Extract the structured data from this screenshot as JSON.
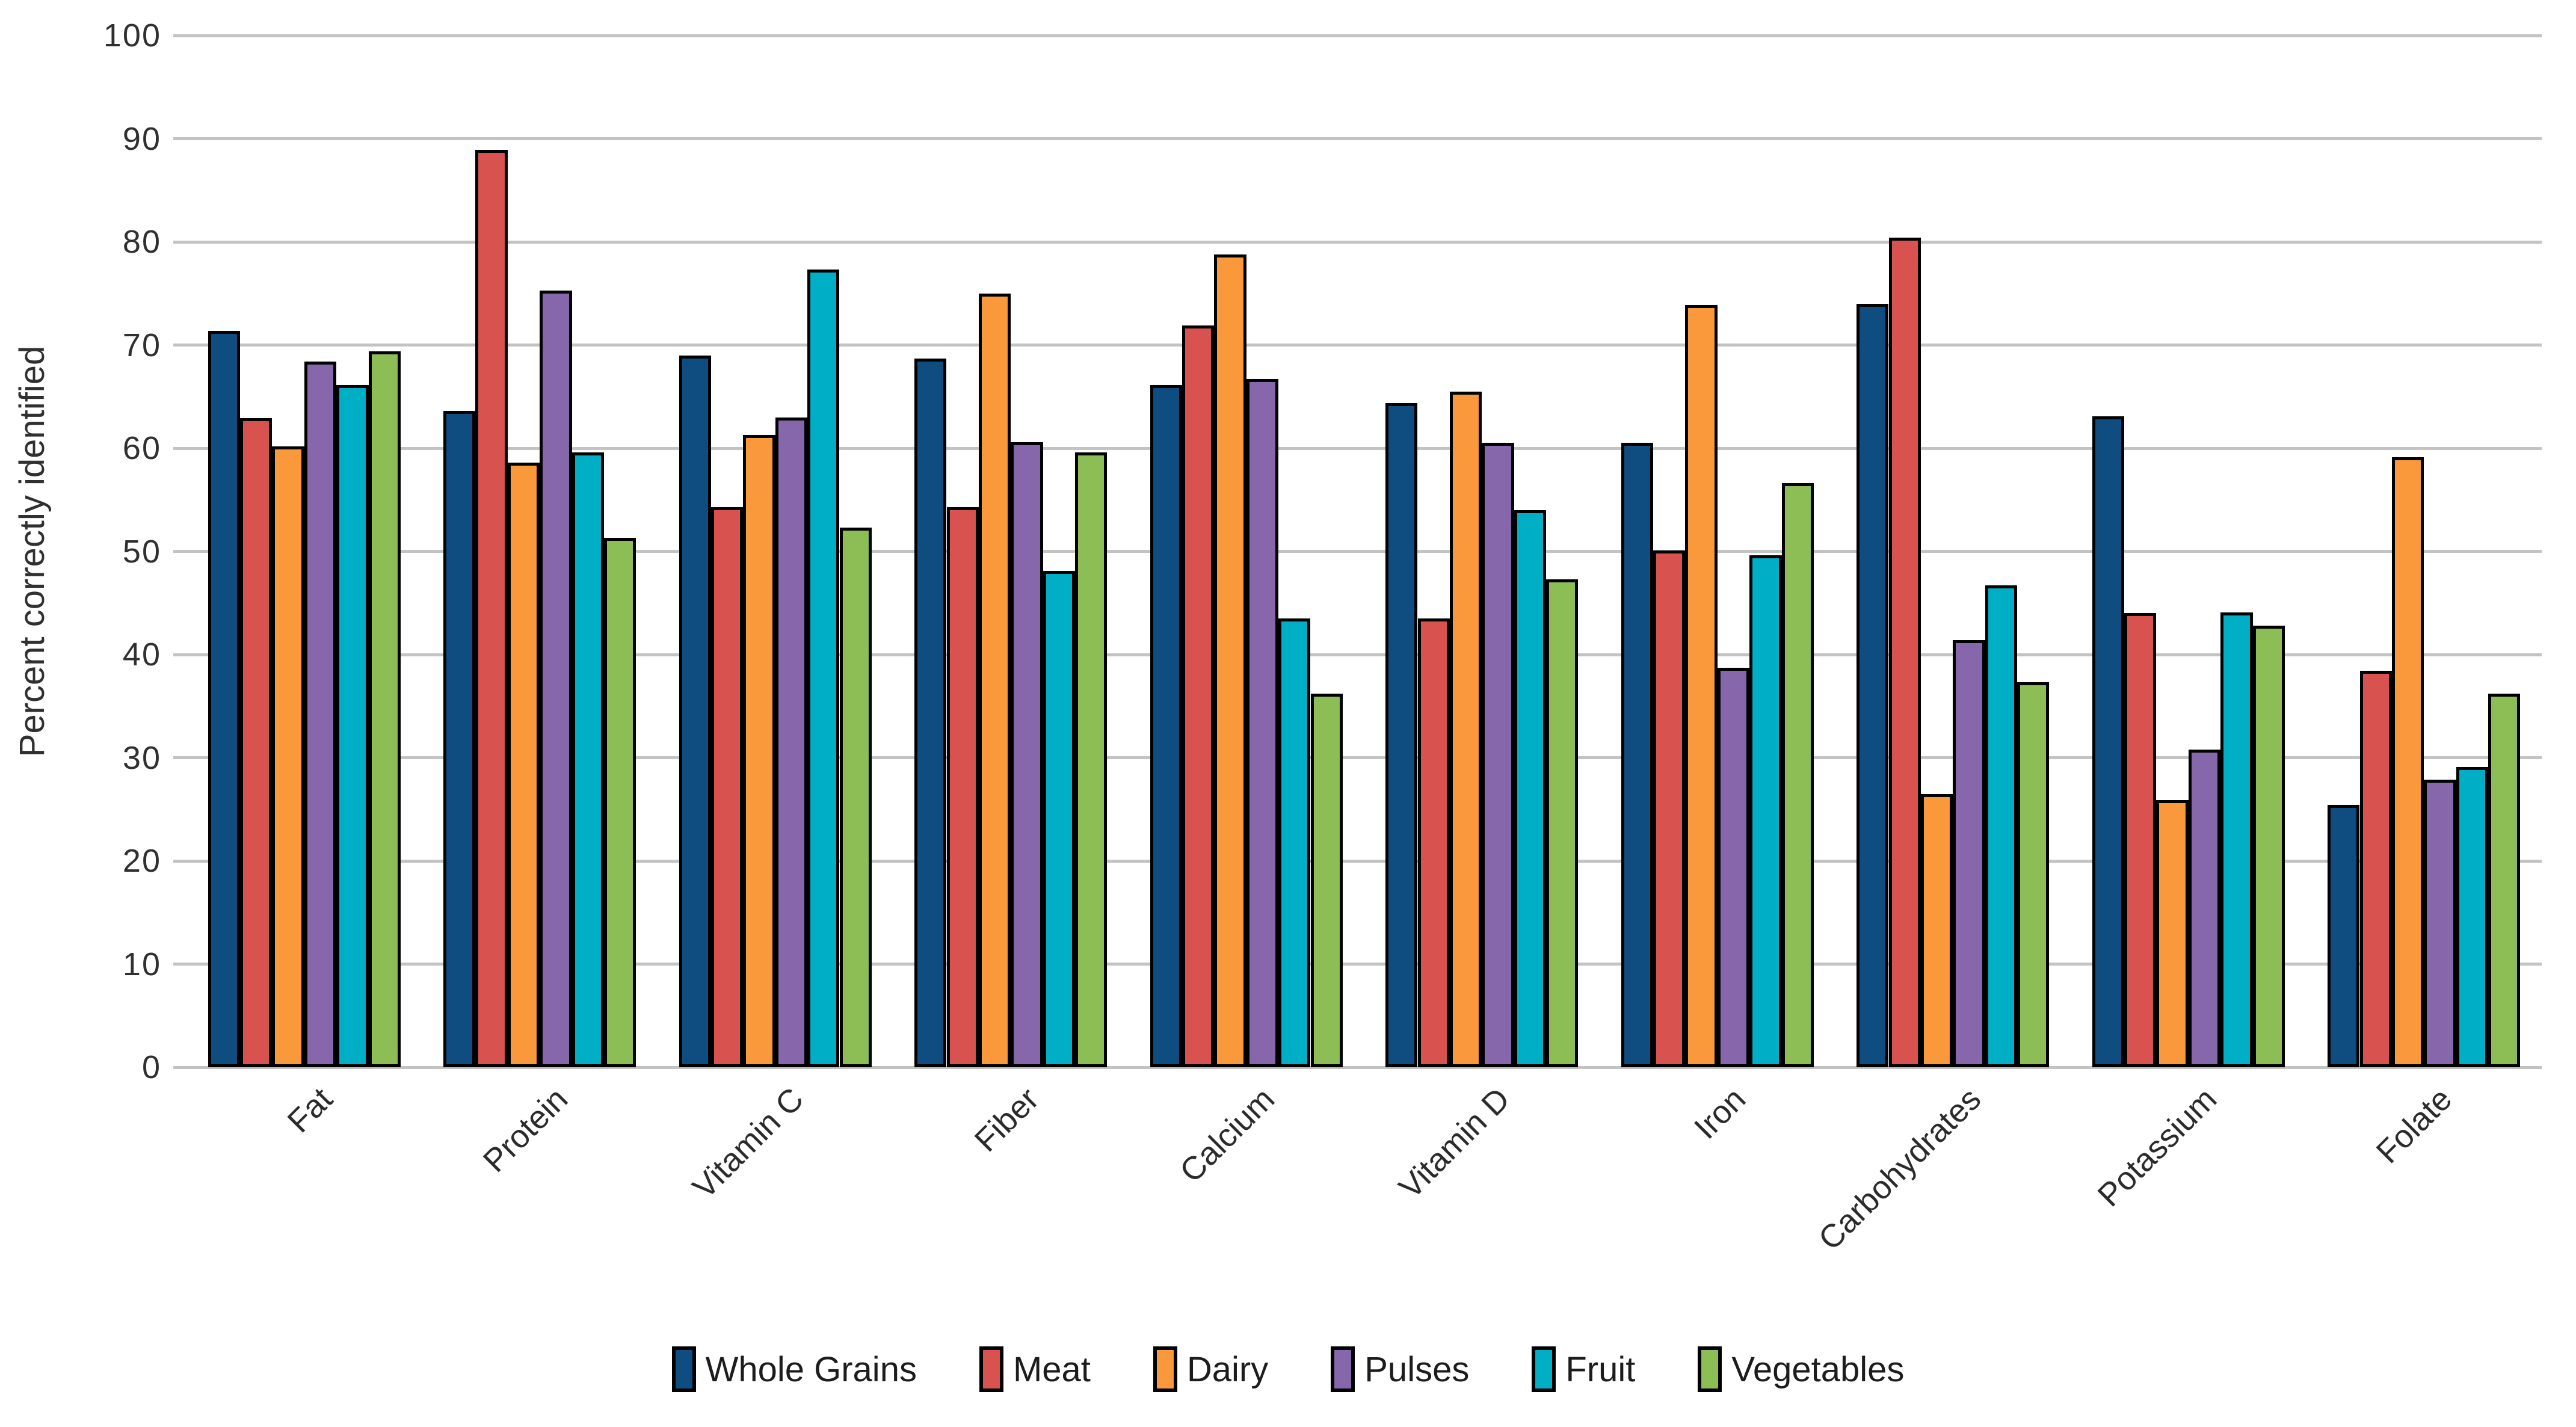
{
  "chart_data": {
    "type": "bar",
    "title": "",
    "xlabel": "",
    "ylabel": "Percent correctly identified",
    "ylim": [
      0,
      100
    ],
    "ytick_interval": 10,
    "ytick_labels": [
      "0",
      "10",
      "20",
      "30",
      "40",
      "50",
      "60",
      "70",
      "80",
      "90",
      "100"
    ],
    "grid": true,
    "legend_position": "bottom",
    "categories": [
      "Fat",
      "Protein",
      "Vitamin C",
      "Fiber",
      "Calcium",
      "Vitamin D",
      "Iron",
      "Carbohydrates",
      "Potassium",
      "Folate"
    ],
    "series": [
      {
        "name": "Whole Grains",
        "color": "#0f4c7f",
        "values": [
          71.4,
          63.6,
          69.0,
          68.7,
          66.1,
          64.4,
          60.5,
          74.0,
          63.1,
          25.4
        ]
      },
      {
        "name": "Meat",
        "color": "#d85250",
        "values": [
          62.9,
          88.9,
          54.3,
          54.3,
          71.9,
          43.5,
          50.1,
          80.4,
          44.0,
          38.4
        ]
      },
      {
        "name": "Dairy",
        "color": "#f9993b",
        "values": [
          60.2,
          58.6,
          61.3,
          75.0,
          78.8,
          65.5,
          73.9,
          26.5,
          25.9,
          59.1
        ]
      },
      {
        "name": "Pulses",
        "color": "#8767ac",
        "values": [
          68.4,
          75.3,
          63.0,
          60.6,
          66.7,
          60.5,
          38.7,
          41.4,
          30.8,
          27.9
        ]
      },
      {
        "name": "Fruit",
        "color": "#00aec6",
        "values": [
          66.1,
          59.6,
          77.3,
          48.1,
          43.5,
          54.0,
          49.6,
          46.7,
          44.1,
          29.1
        ]
      },
      {
        "name": "Vegetables",
        "color": "#8cbe55",
        "values": [
          69.4,
          51.3,
          52.3,
          59.6,
          36.2,
          47.3,
          56.6,
          37.3,
          42.8,
          36.2
        ]
      }
    ],
    "colors": {
      "gridline": "#c3c3c3",
      "bar_border": "#000000",
      "axis_text": "#303030"
    }
  }
}
